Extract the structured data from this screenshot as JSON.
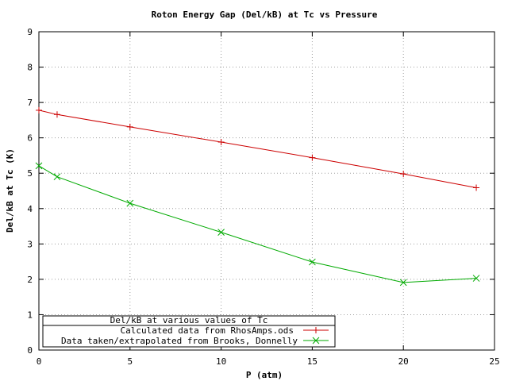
{
  "chart_data": {
    "type": "line",
    "title": "Roton Energy Gap (Del/kB) at Tc vs Pressure",
    "xlabel": "P (atm)",
    "ylabel": "Del/kB at Tc (K)",
    "xlim": [
      0,
      25
    ],
    "ylim": [
      0,
      9
    ],
    "xticks": [
      "0",
      "5",
      "10",
      "15",
      "20",
      "25"
    ],
    "yticks": [
      "0",
      "1",
      "2",
      "3",
      "4",
      "5",
      "6",
      "7",
      "8",
      "9"
    ],
    "grid": true,
    "legend": {
      "title": "Del/kB at various values of Tc",
      "placement": "bottom-left"
    },
    "series": [
      {
        "name": "Calculated data from RhosAmps.ods",
        "color": "#cc0000",
        "marker": "plus",
        "x": [
          0,
          1,
          5,
          10,
          15,
          20,
          24
        ],
        "y": [
          6.78,
          6.66,
          6.31,
          5.88,
          5.44,
          4.98,
          4.59
        ]
      },
      {
        "name": "Data taken/extrapolated from Brooks, Donnelly",
        "color": "#00aa00",
        "marker": "x",
        "x": [
          0,
          1,
          5,
          10,
          15,
          20,
          24
        ],
        "y": [
          5.21,
          4.9,
          4.15,
          3.33,
          2.49,
          1.91,
          2.03
        ]
      }
    ]
  }
}
